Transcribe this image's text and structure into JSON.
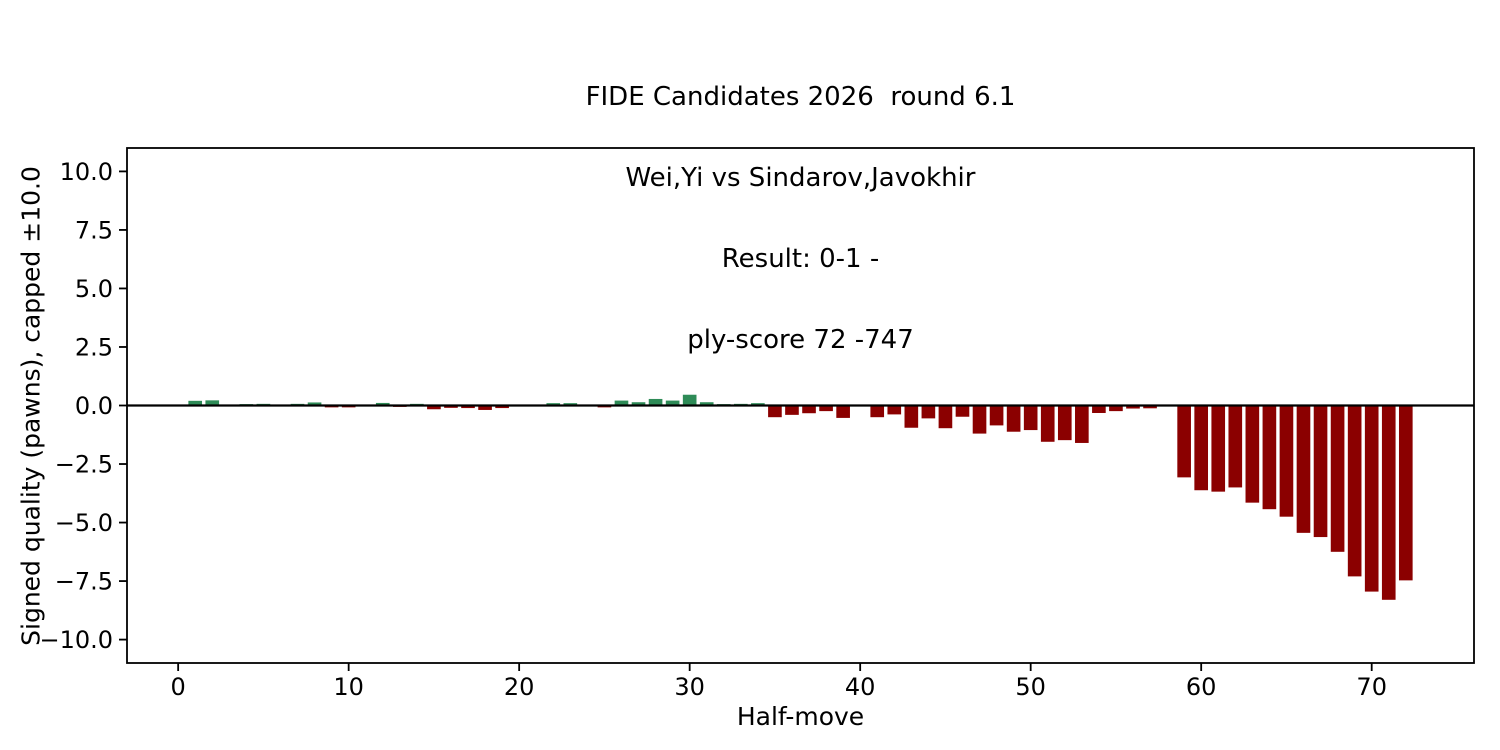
{
  "figure": {
    "background": "#ffffff"
  },
  "chart_data": {
    "type": "bar",
    "title_lines": [
      "FIDE Candidates 2026  round 6.1",
      "Wei,Yi vs Sindarov,Javokhir",
      "Result: 0-1 -",
      "ply-score 72 -747"
    ],
    "xlabel": "Half-move",
    "ylabel": "Signed quality (pawns), capped ±10.0",
    "x_start": 1,
    "values": [
      0.2,
      0.22,
      0.03,
      0.06,
      0.07,
      0.02,
      0.07,
      0.13,
      -0.08,
      -0.08,
      -0.03,
      0.11,
      -0.06,
      0.07,
      -0.16,
      -0.1,
      -0.11,
      -0.19,
      -0.11,
      -0.02,
      0.03,
      0.1,
      0.1,
      0.02,
      -0.08,
      0.21,
      0.14,
      0.28,
      0.21,
      0.46,
      0.14,
      0.06,
      0.07,
      0.1,
      -0.5,
      -0.4,
      -0.33,
      -0.24,
      -0.53,
      -0.04,
      -0.5,
      -0.38,
      -0.95,
      -0.55,
      -0.97,
      -0.48,
      -1.2,
      -0.85,
      -1.12,
      -1.05,
      -1.55,
      -1.48,
      -1.6,
      -0.32,
      -0.24,
      -0.13,
      -0.12,
      -0.03,
      -3.07,
      -3.62,
      -3.68,
      -3.5,
      -4.15,
      -4.43,
      -4.75,
      -5.44,
      -5.62,
      -6.25,
      -7.3,
      -7.95,
      -8.3,
      -7.47
    ],
    "bar_width": 0.8,
    "colors": {
      "positive": "#2e8b57",
      "negative": "#8b0000",
      "axis": "#000000"
    },
    "xticks": [
      0,
      10,
      20,
      30,
      40,
      50,
      60,
      70
    ],
    "xtick_labels": [
      "0",
      "10",
      "20",
      "30",
      "40",
      "50",
      "60",
      "70"
    ],
    "yticks": [
      10.0,
      7.5,
      5.0,
      2.5,
      0.0,
      -2.5,
      -5.0,
      -7.5,
      -10.0
    ],
    "ytick_labels": [
      "10.0",
      "7.5",
      "5.0",
      "2.5",
      "0.0",
      "−2.5",
      "−5.0",
      "−7.5",
      "−10.0"
    ],
    "xlim": [
      -3.0,
      76.0
    ],
    "ylim": [
      -11.0,
      11.0
    ],
    "zero_line": true,
    "grid": false,
    "legend": null
  }
}
